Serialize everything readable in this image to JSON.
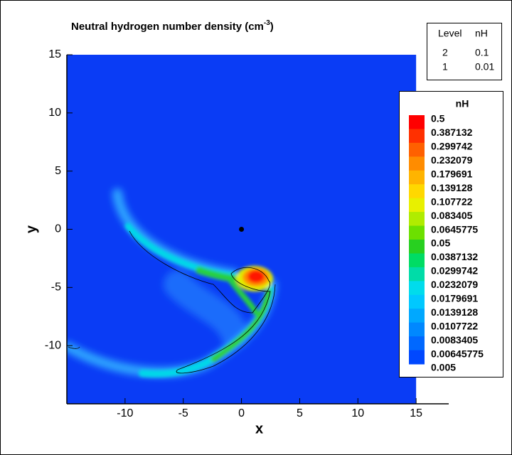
{
  "chart_data": {
    "type": "contour",
    "title": {
      "text": "Neutral hydrogen number density (cm",
      "superscript": "-3",
      "suffix": ")"
    },
    "x_label": "x",
    "y_label": "y",
    "xlim": [
      -15,
      17.8
    ],
    "ylim": [
      -15,
      15
    ],
    "xticks": [
      -10,
      -5,
      0,
      5,
      10,
      15
    ],
    "yticks": [
      -10,
      -5,
      0,
      5,
      10,
      15
    ],
    "domain": {
      "x": [
        -15,
        15
      ],
      "y": [
        -15,
        15
      ]
    },
    "background_color": "#0a3cf5",
    "marker": {
      "x": 0,
      "y": 0
    },
    "colorbar": {
      "title": "nH",
      "levels": [
        0.5,
        0.387132,
        0.299742,
        0.232079,
        0.179691,
        0.139128,
        0.107722,
        0.083405,
        0.0645775,
        0.05,
        0.0387132,
        0.0299742,
        0.0232079,
        0.0179691,
        0.0139128,
        0.0107722,
        0.0083405,
        0.00645775,
        0.005
      ],
      "colors": [
        "#ff0000",
        "#ff3000",
        "#ff6000",
        "#ff8c00",
        "#ffb400",
        "#ffd800",
        "#e8f000",
        "#b0ec00",
        "#6ce000",
        "#28d020",
        "#00dc64",
        "#00dca8",
        "#00dcec",
        "#00c8ff",
        "#00a8ff",
        "#0088ff",
        "#0068ff",
        "#0048ff",
        "#0a3cf5"
      ]
    },
    "contour_legend": {
      "headers": [
        "Level",
        "nH"
      ],
      "rows": [
        [
          2,
          0.1
        ],
        [
          1,
          0.01
        ]
      ]
    }
  }
}
